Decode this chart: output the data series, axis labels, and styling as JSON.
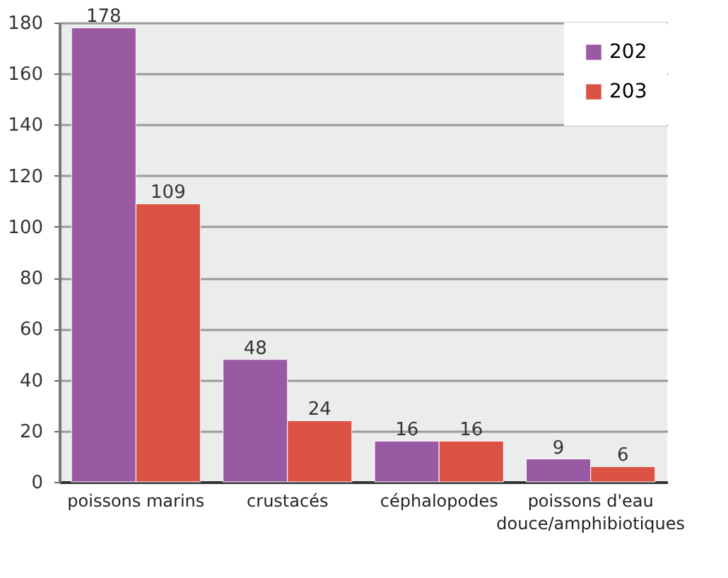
{
  "chart_data": {
    "type": "bar",
    "categories": [
      "poissons marins",
      "crustacés",
      "céphalopodes",
      "poissons d'eau douce/amphibiotiques"
    ],
    "series": [
      {
        "name": "202",
        "color": "#9a59a3",
        "values": [
          178,
          48,
          16,
          9
        ]
      },
      {
        "name": "203",
        "color": "#dc5345",
        "values": [
          109,
          24,
          16,
          6
        ]
      }
    ],
    "ylim": [
      0,
      180
    ],
    "yticks": [
      0,
      20,
      40,
      60,
      80,
      100,
      120,
      140,
      160,
      180
    ],
    "grid": "y",
    "legend": "top right",
    "data_labels": true
  }
}
